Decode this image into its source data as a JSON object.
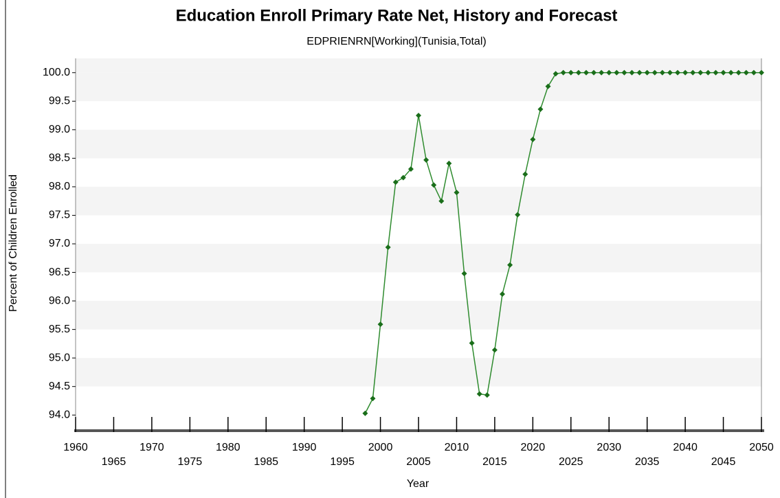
{
  "chart_data": {
    "type": "line",
    "title": "Education Enroll Primary Rate Net, History and Forecast",
    "subtitle": "EDPRIENRN[Working](Tunisia,Total)",
    "x_label": "Year",
    "y_label": "Percent of Children Enrolled",
    "x": [
      1998,
      1999,
      2000,
      2001,
      2002,
      2003,
      2004,
      2005,
      2006,
      2007,
      2008,
      2009,
      2010,
      2011,
      2012,
      2013,
      2014,
      2015,
      2016,
      2017,
      2018,
      2019,
      2020,
      2021,
      2022,
      2023,
      2024,
      2025,
      2026,
      2027,
      2028,
      2029,
      2030,
      2031,
      2032,
      2033,
      2034,
      2035,
      2036,
      2037,
      2038,
      2039,
      2040,
      2041,
      2042,
      2043,
      2044,
      2045,
      2046,
      2047,
      2048,
      2049,
      2050
    ],
    "series": [
      {
        "name": "EDPRIENRN",
        "color": "#2e8b2e",
        "marker_color": "#1a6e1a",
        "values": [
          94.03,
          94.29,
          95.59,
          96.94,
          98.08,
          98.16,
          98.31,
          99.25,
          98.47,
          98.03,
          97.75,
          98.41,
          97.9,
          96.48,
          95.26,
          94.37,
          94.35,
          95.14,
          96.12,
          96.63,
          97.51,
          98.22,
          98.83,
          99.36,
          99.76,
          99.98,
          100,
          100,
          100,
          100,
          100,
          100,
          100,
          100,
          100,
          100,
          100,
          100,
          100,
          100,
          100,
          100,
          100,
          100,
          100,
          100,
          100,
          100,
          100,
          100,
          100,
          100,
          100
        ]
      }
    ],
    "xlim": [
      1960,
      2050
    ],
    "xticks": [
      1960,
      1965,
      1970,
      1975,
      1980,
      1985,
      1990,
      1995,
      2000,
      2005,
      2010,
      2015,
      2020,
      2025,
      2030,
      2035,
      2040,
      2045,
      2050
    ],
    "ylim": [
      93.75,
      100.25
    ],
    "yticks": [
      {
        "value": 94,
        "label": "94.0"
      },
      94.5,
      {
        "value": 95,
        "label": "95.0"
      },
      95.5,
      {
        "value": 96,
        "label": "96.0"
      },
      96.5,
      {
        "value": 97,
        "label": "97.0"
      },
      97.5,
      {
        "value": 98,
        "label": "98.0"
      },
      98.5,
      {
        "value": 99,
        "label": "99.0"
      },
      99.5,
      {
        "value": 100,
        "label": "100.0"
      }
    ],
    "grid": true
  }
}
